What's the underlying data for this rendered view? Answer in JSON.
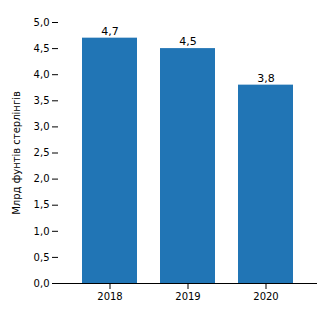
{
  "chart_data": {
    "type": "bar",
    "categories": [
      "2018",
      "2019",
      "2020"
    ],
    "values": [
      4.7,
      4.5,
      3.8
    ],
    "value_labels": [
      "4,7",
      "4,5",
      "3,8"
    ],
    "data_labels": true,
    "color": "#2175b5",
    "ylabel": "Млрд фунтів стерлінгів",
    "ylim": [
      0,
      5.0
    ],
    "yticks": [
      {
        "value": 0.0,
        "label": "0,0"
      },
      {
        "value": 0.5,
        "label": "0,5"
      },
      {
        "value": 1.0,
        "label": "1,0"
      },
      {
        "value": 1.5,
        "label": "1,5"
      },
      {
        "value": 2.0,
        "label": "2,0"
      },
      {
        "value": 2.5,
        "label": "2,5"
      },
      {
        "value": 3.0,
        "label": "3,0"
      },
      {
        "value": 3.5,
        "label": "3,5"
      },
      {
        "value": 4.0,
        "label": "4,0"
      },
      {
        "value": 4.5,
        "label": "4,5"
      },
      {
        "value": 5.0,
        "label": "5,0"
      }
    ],
    "grid": false
  }
}
